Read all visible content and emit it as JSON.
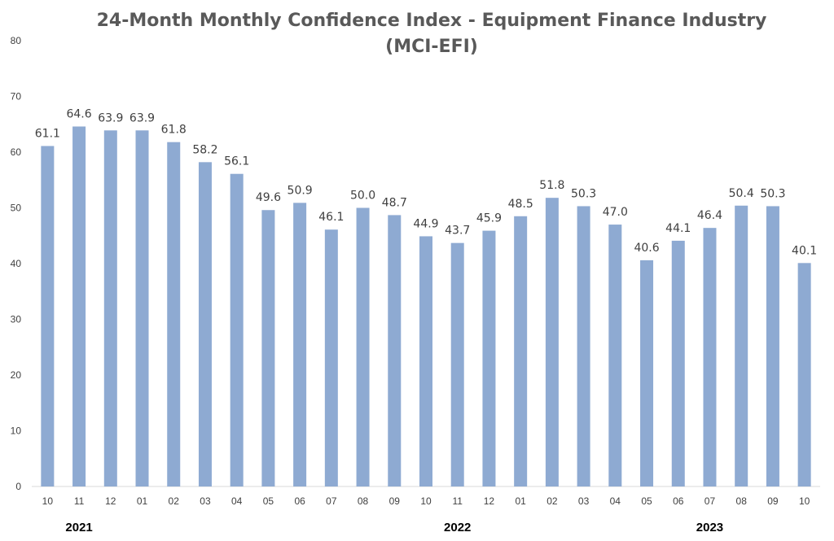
{
  "chart_data": {
    "type": "bar",
    "title": "24-Month Monthly Confidence Index - Equipment Finance Industry",
    "title_line2": "(MCI-EFI)",
    "categories": [
      "10",
      "11",
      "12",
      "01",
      "02",
      "03",
      "04",
      "05",
      "06",
      "07",
      "08",
      "09",
      "10",
      "11",
      "12",
      "01",
      "02",
      "03",
      "04",
      "05",
      "06",
      "07",
      "08",
      "09",
      "10"
    ],
    "values": [
      61.1,
      64.6,
      63.9,
      63.9,
      61.8,
      58.2,
      56.1,
      49.6,
      50.9,
      46.1,
      50.0,
      48.7,
      44.9,
      43.7,
      45.9,
      48.5,
      51.8,
      50.3,
      47.0,
      40.6,
      44.1,
      46.4,
      50.4,
      50.3,
      40.1
    ],
    "value_labels": [
      "61.1",
      "64.6",
      "63.9",
      "63.9",
      "61.8",
      "58.2",
      "56.1",
      "49.6",
      "50.9",
      "46.1",
      "50.0",
      "48.7",
      "44.9",
      "43.7",
      "45.9",
      "48.5",
      "51.8",
      "50.3",
      "47.0",
      "40.6",
      "44.1",
      "46.4",
      "50.4",
      "50.3",
      "40.1"
    ],
    "year_labels": [
      {
        "text": "2021",
        "index": 1
      },
      {
        "text": "2022",
        "index": 13
      },
      {
        "text": "2023",
        "index": 21
      }
    ],
    "yticks": [
      "0",
      "10",
      "20",
      "30",
      "40",
      "50",
      "60",
      "70",
      "80"
    ],
    "ylim": [
      0,
      80
    ],
    "xlabel": "",
    "ylabel": "",
    "grid": false,
    "legend": "none",
    "bar_color": "#8eaad2"
  }
}
